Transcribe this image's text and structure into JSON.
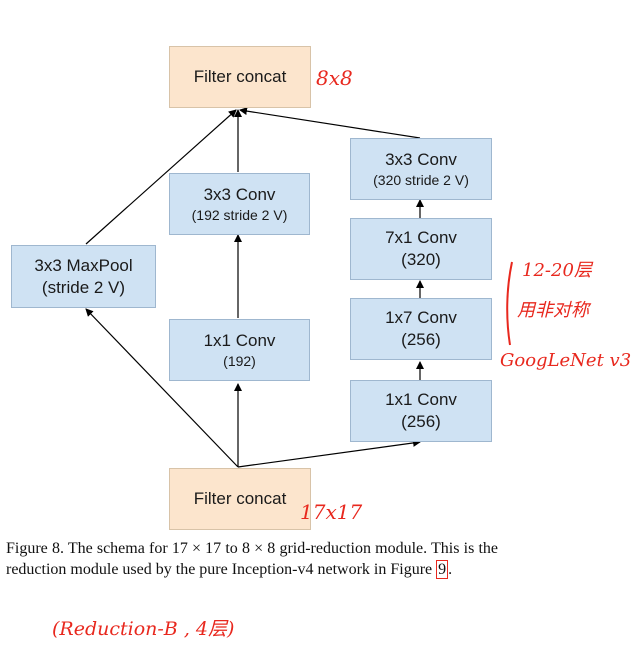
{
  "nodes": {
    "filter_concat_top": {
      "label": "Filter concat"
    },
    "maxpool": {
      "line1": "3x3 MaxPool",
      "line2": "(stride 2 V)"
    },
    "mid_conv3x3": {
      "line1": "3x3 Conv",
      "line2": "(192 stride 2 V)"
    },
    "mid_conv1x1": {
      "line1": "1x1 Conv",
      "line2": "(192)"
    },
    "right_conv3x3": {
      "line1": "3x3 Conv",
      "line2": "(320 stride 2 V)"
    },
    "right_conv7x1": {
      "line1": "7x1 Conv",
      "line2": "(320)"
    },
    "right_conv1x7": {
      "line1": "1x7 Conv",
      "line2": "(256)"
    },
    "right_conv1x1": {
      "line1": "1x1 Conv",
      "line2": "(256)"
    },
    "filter_concat_bottom": {
      "label": "Filter concat"
    }
  },
  "annotations": {
    "top_size": "8x8",
    "bottom_size": "17x17",
    "side_note_line1": "12-20层",
    "side_note_line2": "用非对称",
    "side_note_line3": "GoogLeNet v3",
    "bottom_note": "(Reduction-B , 4层)"
  },
  "caption": {
    "text_before_ref": "Figure 8. The schema for 17 × 17 to 8 × 8 grid-reduction module. This is the reduction module used by the pure Inception-v4 network in Figure ",
    "figure_ref": "9",
    "text_after_ref": "."
  },
  "colors": {
    "conv_fill": "#cfe2f3",
    "concat_fill": "#fce5cd",
    "annotation_red": "#e8281e"
  }
}
